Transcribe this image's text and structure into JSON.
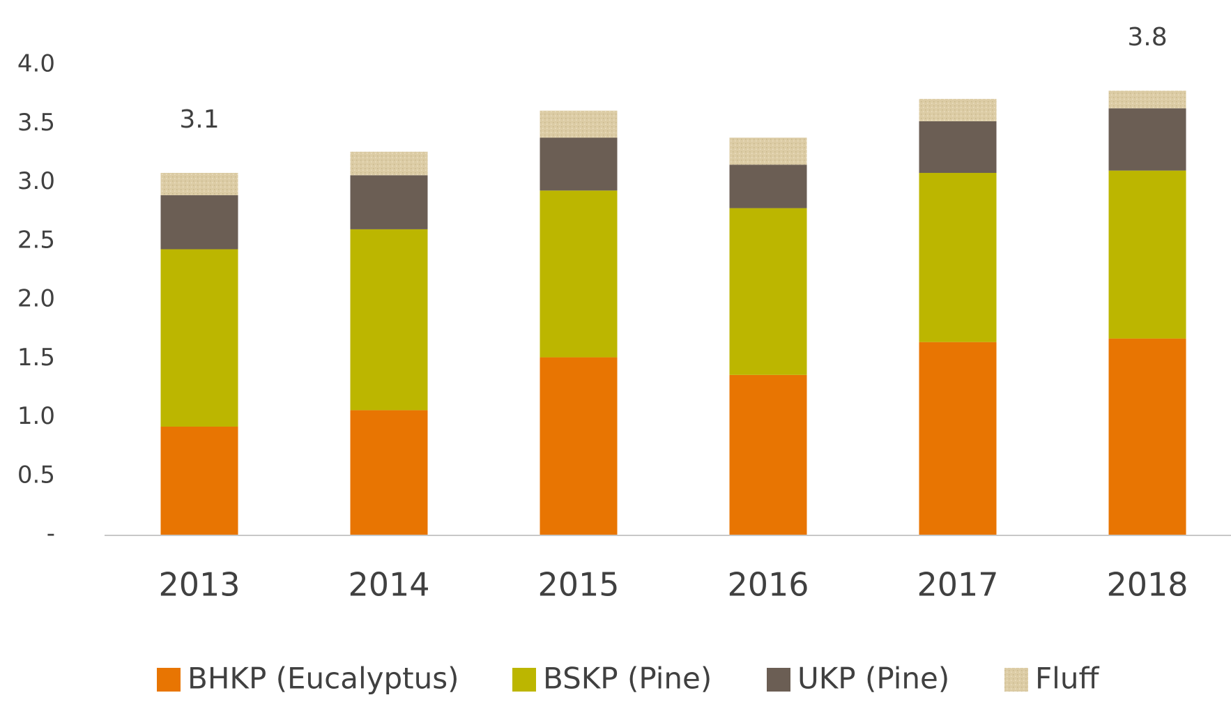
{
  "chart_data": {
    "type": "stacked_bar",
    "categories": [
      "2013",
      "2014",
      "2015",
      "2016",
      "2017",
      "2018"
    ],
    "series": [
      {
        "name": "BHKP (Eucalyptus)",
        "color": "#e87502",
        "values": [
          0.92,
          1.06,
          1.51,
          1.36,
          1.64,
          1.67
        ]
      },
      {
        "name": "BSKP (Pine)",
        "color": "#bcb600",
        "values": [
          1.51,
          1.54,
          1.42,
          1.42,
          1.44,
          1.43
        ]
      },
      {
        "name": "UKP (Pine)",
        "color": "#6b5e54",
        "values": [
          0.46,
          0.46,
          0.45,
          0.37,
          0.44,
          0.53
        ]
      },
      {
        "name": "Fluff",
        "color": "#dccca5",
        "values": [
          0.19,
          0.2,
          0.23,
          0.23,
          0.19,
          0.15
        ]
      }
    ],
    "annotations": [
      {
        "x": "2013",
        "text": "3.1"
      },
      {
        "x": "2018",
        "text": "3.8"
      }
    ],
    "ylim": [
      0,
      4
    ],
    "yticks": [
      {
        "value": 0,
        "label": "-"
      },
      0.5,
      {
        "value": 1,
        "label": "1.0"
      },
      1.5,
      {
        "value": 2,
        "label": "2.0"
      },
      2.5,
      {
        "value": 3,
        "label": "3.0"
      },
      3.5,
      {
        "value": 4,
        "label": "4.0"
      }
    ],
    "grid": false,
    "legend": "bottom"
  }
}
